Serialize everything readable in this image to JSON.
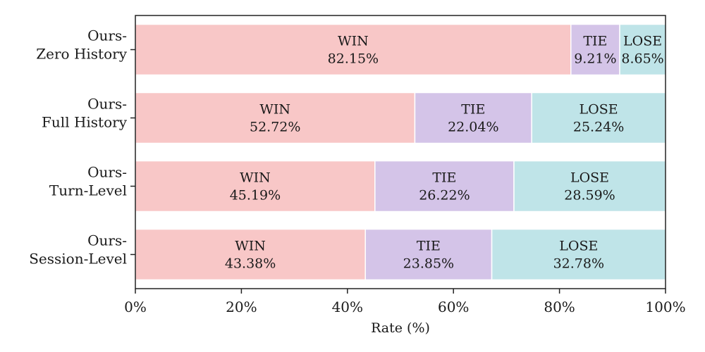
{
  "chart_data": {
    "type": "bar",
    "orientation": "horizontal",
    "stacked": true,
    "xlabel": "Rate (%)",
    "ylabel": "",
    "title": "",
    "xlim": [
      0,
      100
    ],
    "xticks": [
      "0%",
      "20%",
      "40%",
      "60%",
      "80%",
      "100%"
    ],
    "xtick_values": [
      0,
      20,
      40,
      60,
      80,
      100
    ],
    "grid": false,
    "legend": "none",
    "categories": [
      [
        "Ours-",
        "Zero History"
      ],
      [
        "Ours-",
        "Full History"
      ],
      [
        "Ours-",
        "Turn-Level"
      ],
      [
        "Ours-",
        "Session-Level"
      ]
    ],
    "series": [
      {
        "name": "WIN",
        "color": "#f8c7c7",
        "values": [
          82.15,
          52.72,
          45.19,
          43.38
        ],
        "labels": [
          "82.15%",
          "52.72%",
          "45.19%",
          "43.38%"
        ]
      },
      {
        "name": "TIE",
        "color": "#d4c4e8",
        "values": [
          9.21,
          22.04,
          26.22,
          23.85
        ],
        "labels": [
          "9.21%",
          "22.04%",
          "26.22%",
          "23.85%"
        ]
      },
      {
        "name": "LOSE",
        "color": "#bfe4e8",
        "values": [
          8.65,
          25.24,
          28.59,
          32.78
        ],
        "labels": [
          "8.65%",
          "25.24%",
          "28.59%",
          "32.78%"
        ]
      }
    ]
  }
}
